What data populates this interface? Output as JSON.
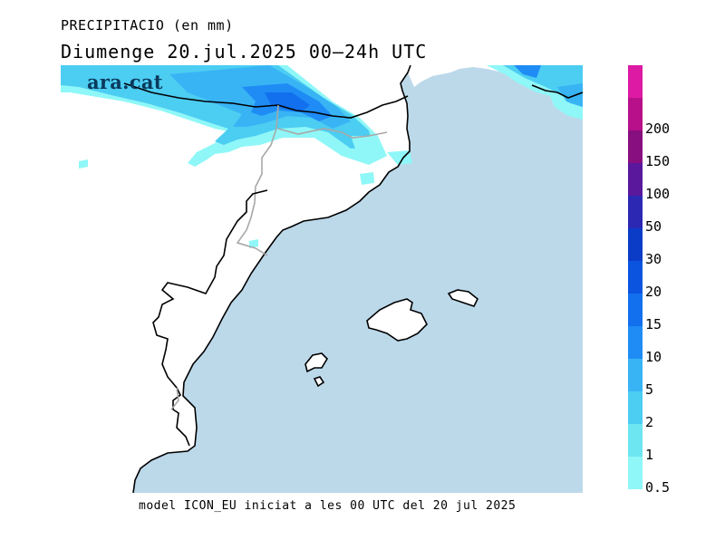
{
  "header": {
    "title_line1": "PRECIPITACIO (en mm)",
    "title_line2": "Diumenge  20.jul.2025 00–24h UTC"
  },
  "logo": {
    "text": "ara.cat"
  },
  "footer": {
    "text": "model ICON_EU iniciat a les 00 UTC del 20 jul 2025"
  },
  "map": {
    "sea_color": "#bcd9ea",
    "land_color": "#ffffff",
    "coast_color": "#000000",
    "border_color": "#a8a8a8"
  },
  "legend": {
    "unit": "mm",
    "bins": [
      {
        "label": "0.5",
        "color": "#8ff7f7"
      },
      {
        "label": "1",
        "color": "#6ee6f2"
      },
      {
        "label": "2",
        "color": "#4ccdf2"
      },
      {
        "label": "5",
        "color": "#38b4f5"
      },
      {
        "label": "10",
        "color": "#1f8cf5"
      },
      {
        "label": "15",
        "color": "#1270ee"
      },
      {
        "label": "20",
        "color": "#0a54e0"
      },
      {
        "label": "30",
        "color": "#0a3cc8"
      },
      {
        "label": "50",
        "color": "#2c28b4"
      },
      {
        "label": "100",
        "color": "#5a189c"
      },
      {
        "label": "150",
        "color": "#880f80"
      },
      {
        "label": "200",
        "color": "#b8108a"
      },
      {
        "label": "",
        "color": "#dc1aa4"
      }
    ]
  }
}
